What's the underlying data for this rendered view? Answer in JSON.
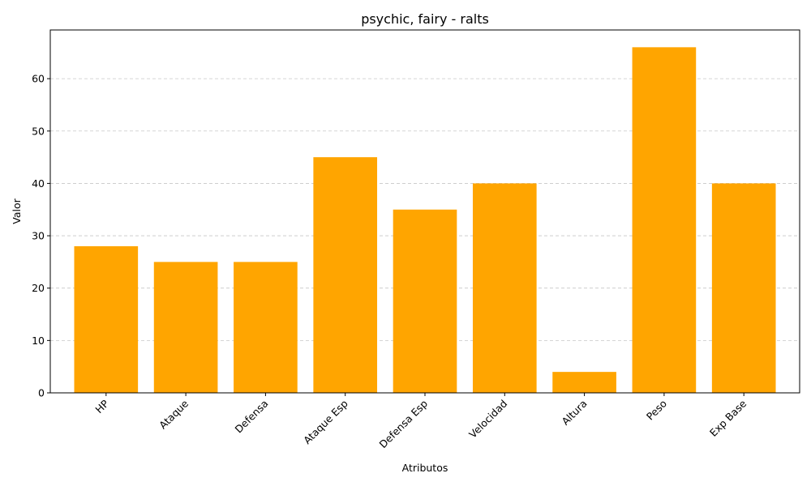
{
  "chart_data": {
    "type": "bar",
    "title": "psychic, fairy - ralts",
    "xlabel": "Atributos",
    "ylabel": "Valor",
    "categories": [
      "HP",
      "Ataque",
      "Defensa",
      "Ataque Esp",
      "Defensa Esp",
      "Velocidad",
      "Altura",
      "Peso",
      "Exp Base"
    ],
    "values": [
      28,
      25,
      25,
      45,
      35,
      40,
      4,
      66,
      40
    ],
    "ylim": [
      0,
      69.3
    ],
    "yticks": [
      0,
      10,
      20,
      30,
      40,
      50,
      60
    ],
    "grid": "y-dashed",
    "bar_color": "#FFA500",
    "tick_rotation": 45
  }
}
